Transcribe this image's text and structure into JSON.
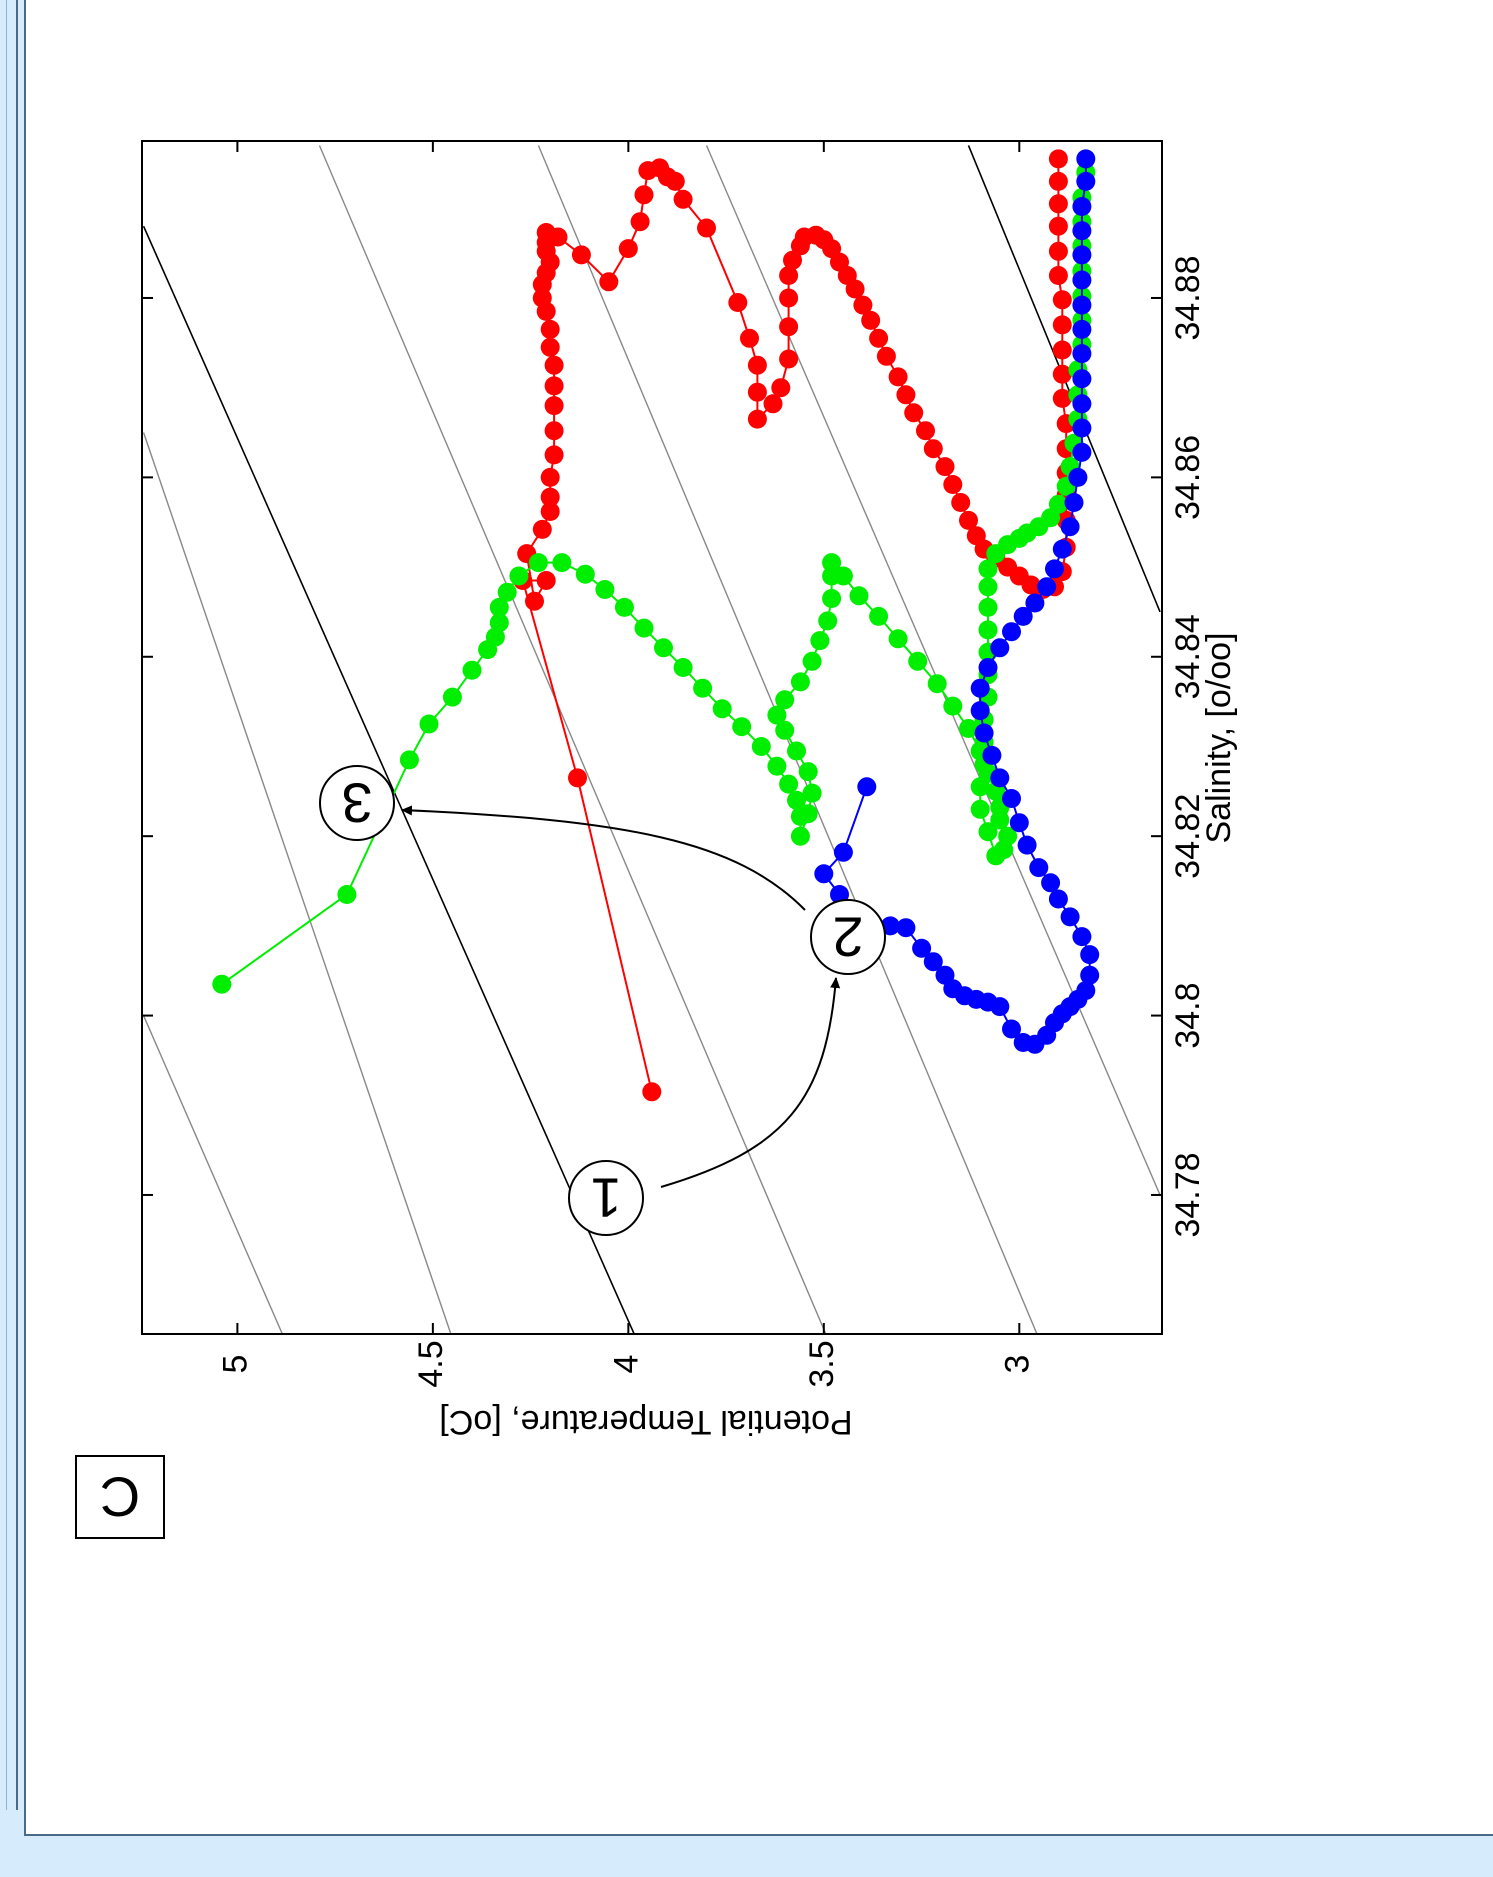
{
  "panel": {
    "letter": "C"
  },
  "colors": {
    "red": "#ff0000",
    "green": "#00ee00",
    "blue": "#0000ff",
    "isopycnal_dark": "#000000",
    "isopycnal_light": "#888888"
  },
  "annotations": [
    {
      "label": "1"
    },
    {
      "label": "2"
    },
    {
      "label": "3"
    }
  ],
  "chart_data": {
    "type": "scatter",
    "orientation": "rotated-180",
    "xlabel": "Salinity, [o/oo]",
    "ylabel": "Potential Temperature, [oC]",
    "xlim": [
      34.7645,
      34.8975
    ],
    "ylim": [
      2.635,
      5.244
    ],
    "xticks": [
      34.78,
      34.8,
      34.82,
      34.84,
      34.86,
      34.88
    ],
    "xtick_labels": [
      "34.78",
      "34.8",
      "34.82",
      "34.84",
      "34.86",
      "34.88"
    ],
    "yticks": [
      3,
      3.5,
      4,
      4.5,
      5
    ],
    "ytick_labels": [
      "3",
      "3.5",
      "4",
      "4.5",
      "5"
    ],
    "grid": false,
    "isopycnals": [
      {
        "style": "light",
        "points": [
          [
            34.764,
            4.88
          ],
          [
            34.8,
            5.24
          ]
        ]
      },
      {
        "style": "light",
        "points": [
          [
            34.764,
            4.45
          ],
          [
            34.865,
            5.24
          ]
        ]
      },
      {
        "style": "dark",
        "points": [
          [
            34.764,
            3.98
          ],
          [
            34.888,
            5.24
          ]
        ]
      },
      {
        "style": "light",
        "points": [
          [
            34.764,
            3.49
          ],
          [
            34.897,
            4.79
          ]
        ]
      },
      {
        "style": "light",
        "points": [
          [
            34.764,
            2.95
          ],
          [
            34.897,
            4.23
          ]
        ]
      },
      {
        "style": "light",
        "points": [
          [
            34.78,
            2.64
          ],
          [
            34.897,
            3.8
          ]
        ]
      },
      {
        "style": "dark",
        "points": [
          [
            34.845,
            2.64
          ],
          [
            34.897,
            3.13
          ]
        ]
      }
    ],
    "series": [
      {
        "color": "red",
        "points": [
          [
            34.7915,
            3.94
          ],
          [
            34.8265,
            4.13
          ],
          [
            34.8485,
            4.27
          ],
          [
            34.8485,
            4.21
          ],
          [
            34.8462,
            4.24
          ],
          [
            34.8515,
            4.26
          ],
          [
            34.8542,
            4.22
          ],
          [
            34.8562,
            4.2
          ],
          [
            34.8578,
            4.2
          ],
          [
            34.86,
            4.2
          ],
          [
            34.8625,
            4.19
          ],
          [
            34.8652,
            4.19
          ],
          [
            34.868,
            4.19
          ],
          [
            34.8702,
            4.19
          ],
          [
            34.8725,
            4.19
          ],
          [
            34.8745,
            4.2
          ],
          [
            34.8765,
            4.2
          ],
          [
            34.8785,
            4.21
          ],
          [
            34.88,
            4.22
          ],
          [
            34.8815,
            4.22
          ],
          [
            34.8828,
            4.21
          ],
          [
            34.884,
            4.2
          ],
          [
            34.8852,
            4.21
          ],
          [
            34.8862,
            4.21
          ],
          [
            34.8873,
            4.21
          ],
          [
            34.8868,
            4.18
          ],
          [
            34.8848,
            4.12
          ],
          [
            34.8818,
            4.05
          ],
          [
            34.8855,
            4.0
          ],
          [
            34.8885,
            3.97
          ],
          [
            34.8915,
            3.96
          ],
          [
            34.8942,
            3.95
          ],
          [
            34.8945,
            3.92
          ],
          [
            34.8935,
            3.9
          ],
          [
            34.893,
            3.88
          ],
          [
            34.891,
            3.86
          ],
          [
            34.8878,
            3.8
          ],
          [
            34.8795,
            3.72
          ],
          [
            34.8755,
            3.69
          ],
          [
            34.8725,
            3.67
          ],
          [
            34.8695,
            3.67
          ],
          [
            34.8665,
            3.67
          ],
          [
            34.8682,
            3.63
          ],
          [
            34.87,
            3.61
          ],
          [
            34.8732,
            3.59
          ],
          [
            34.8768,
            3.59
          ],
          [
            34.88,
            3.59
          ],
          [
            34.8825,
            3.59
          ],
          [
            34.8842,
            3.58
          ],
          [
            34.8858,
            3.56
          ],
          [
            34.8868,
            3.55
          ],
          [
            34.887,
            3.52
          ],
          [
            34.8865,
            3.5
          ],
          [
            34.8855,
            3.48
          ],
          [
            34.884,
            3.46
          ],
          [
            34.8825,
            3.44
          ],
          [
            34.881,
            3.42
          ],
          [
            34.8792,
            3.4
          ],
          [
            34.8775,
            3.38
          ],
          [
            34.8755,
            3.36
          ],
          [
            34.8735,
            3.34
          ],
          [
            34.8712,
            3.31
          ],
          [
            34.8692,
            3.29
          ],
          [
            34.8672,
            3.27
          ],
          [
            34.8652,
            3.24
          ],
          [
            34.8632,
            3.22
          ],
          [
            34.8612,
            3.19
          ],
          [
            34.8592,
            3.17
          ],
          [
            34.8572,
            3.15
          ],
          [
            34.8552,
            3.13
          ],
          [
            34.8535,
            3.11
          ],
          [
            34.852,
            3.09
          ],
          [
            34.851,
            3.06
          ],
          [
            34.85,
            3.03
          ],
          [
            34.849,
            3.0
          ],
          [
            34.848,
            2.97
          ],
          [
            34.8475,
            2.94
          ],
          [
            34.8478,
            2.91
          ],
          [
            34.8495,
            2.89
          ],
          [
            34.8522,
            2.88
          ],
          [
            34.8552,
            2.88
          ],
          [
            34.858,
            2.88
          ],
          [
            34.8605,
            2.88
          ],
          [
            34.8632,
            2.88
          ],
          [
            34.866,
            2.88
          ],
          [
            34.8688,
            2.89
          ],
          [
            34.8715,
            2.89
          ],
          [
            34.8742,
            2.89
          ],
          [
            34.877,
            2.89
          ],
          [
            34.8798,
            2.89
          ],
          [
            34.8825,
            2.9
          ],
          [
            34.8852,
            2.9
          ],
          [
            34.888,
            2.9
          ],
          [
            34.8905,
            2.9
          ],
          [
            34.893,
            2.9
          ],
          [
            34.8955,
            2.9
          ]
        ]
      },
      {
        "color": "green",
        "points": [
          [
            34.8035,
            5.04
          ],
          [
            34.8135,
            4.72
          ],
          [
            34.8285,
            4.56
          ],
          [
            34.8325,
            4.51
          ],
          [
            34.8355,
            4.45
          ],
          [
            34.8385,
            4.4
          ],
          [
            34.8408,
            4.36
          ],
          [
            34.8422,
            4.34
          ],
          [
            34.8438,
            4.33
          ],
          [
            34.8455,
            4.33
          ],
          [
            34.8472,
            4.31
          ],
          [
            34.849,
            4.28
          ],
          [
            34.8505,
            4.23
          ],
          [
            34.8505,
            4.17
          ],
          [
            34.8492,
            4.11
          ],
          [
            34.8475,
            4.06
          ],
          [
            34.8455,
            4.01
          ],
          [
            34.8432,
            3.96
          ],
          [
            34.841,
            3.91
          ],
          [
            34.8388,
            3.86
          ],
          [
            34.8365,
            3.81
          ],
          [
            34.8342,
            3.76
          ],
          [
            34.8322,
            3.71
          ],
          [
            34.83,
            3.66
          ],
          [
            34.8278,
            3.62
          ],
          [
            34.8258,
            3.59
          ],
          [
            34.824,
            3.57
          ],
          [
            34.8222,
            3.56
          ],
          [
            34.82,
            3.56
          ],
          [
            34.8225,
            3.54
          ],
          [
            34.8248,
            3.53
          ],
          [
            34.8272,
            3.54
          ],
          [
            34.8295,
            3.57
          ],
          [
            34.8318,
            3.6
          ],
          [
            34.8335,
            3.62
          ],
          [
            34.8352,
            3.6
          ],
          [
            34.8372,
            3.56
          ],
          [
            34.8395,
            3.53
          ],
          [
            34.8418,
            3.51
          ],
          [
            34.844,
            3.49
          ],
          [
            34.8465,
            3.48
          ],
          [
            34.849,
            3.48
          ],
          [
            34.8505,
            3.48
          ],
          [
            34.849,
            3.45
          ],
          [
            34.8468,
            3.41
          ],
          [
            34.8445,
            3.36
          ],
          [
            34.842,
            3.31
          ],
          [
            34.8395,
            3.26
          ],
          [
            34.837,
            3.21
          ],
          [
            34.8345,
            3.17
          ],
          [
            34.832,
            3.13
          ],
          [
            34.8295,
            3.1
          ],
          [
            34.827,
            3.08
          ],
          [
            34.825,
            3.06
          ],
          [
            34.8232,
            3.05
          ],
          [
            34.8218,
            3.05
          ],
          [
            34.82,
            3.03
          ],
          [
            34.8185,
            3.04
          ],
          [
            34.8178,
            3.06
          ],
          [
            34.8205,
            3.08
          ],
          [
            34.823,
            3.1
          ],
          [
            34.8255,
            3.1
          ],
          [
            34.828,
            3.09
          ],
          [
            34.8305,
            3.09
          ],
          [
            34.833,
            3.09
          ],
          [
            34.8355,
            3.08
          ],
          [
            34.838,
            3.08
          ],
          [
            34.8405,
            3.08
          ],
          [
            34.843,
            3.08
          ],
          [
            34.8455,
            3.08
          ],
          [
            34.8478,
            3.08
          ],
          [
            34.8498,
            3.08
          ],
          [
            34.8515,
            3.06
          ],
          [
            34.8525,
            3.03
          ],
          [
            34.8532,
            3.0
          ],
          [
            34.8538,
            2.98
          ],
          [
            34.8545,
            2.95
          ],
          [
            34.8555,
            2.92
          ],
          [
            34.857,
            2.9
          ],
          [
            34.859,
            2.88
          ],
          [
            34.8612,
            2.87
          ],
          [
            34.8638,
            2.86
          ],
          [
            34.8665,
            2.85
          ],
          [
            34.8692,
            2.85
          ],
          [
            34.872,
            2.85
          ],
          [
            34.8748,
            2.84
          ],
          [
            34.8775,
            2.84
          ],
          [
            34.8802,
            2.84
          ],
          [
            34.883,
            2.84
          ],
          [
            34.8858,
            2.84
          ],
          [
            34.8885,
            2.84
          ],
          [
            34.8912,
            2.84
          ],
          [
            34.894,
            2.83
          ]
        ]
      },
      {
        "color": "blue",
        "points": [
          [
            34.8255,
            3.39
          ],
          [
            34.8182,
            3.45
          ],
          [
            34.8158,
            3.5
          ],
          [
            34.8135,
            3.46
          ],
          [
            34.8112,
            3.42
          ],
          [
            34.8095,
            3.38
          ],
          [
            34.81,
            3.33
          ],
          [
            34.8098,
            3.29
          ],
          [
            34.8075,
            3.25
          ],
          [
            34.806,
            3.22
          ],
          [
            34.8045,
            3.19
          ],
          [
            34.803,
            3.17
          ],
          [
            34.8022,
            3.14
          ],
          [
            34.8018,
            3.11
          ],
          [
            34.8015,
            3.08
          ],
          [
            34.801,
            3.05
          ],
          [
            34.7985,
            3.02
          ],
          [
            34.797,
            2.99
          ],
          [
            34.7968,
            2.96
          ],
          [
            34.7978,
            2.93
          ],
          [
            34.7992,
            2.91
          ],
          [
            34.8002,
            2.89
          ],
          [
            34.801,
            2.87
          ],
          [
            34.8018,
            2.85
          ],
          [
            34.8028,
            2.83
          ],
          [
            34.8045,
            2.82
          ],
          [
            34.8068,
            2.82
          ],
          [
            34.8088,
            2.84
          ],
          [
            34.811,
            2.87
          ],
          [
            34.813,
            2.9
          ],
          [
            34.8148,
            2.92
          ],
          [
            34.8165,
            2.95
          ],
          [
            34.819,
            2.98
          ],
          [
            34.8215,
            3.0
          ],
          [
            34.8242,
            3.02
          ],
          [
            34.8265,
            3.05
          ],
          [
            34.829,
            3.07
          ],
          [
            34.8315,
            3.09
          ],
          [
            34.834,
            3.1
          ],
          [
            34.8365,
            3.1
          ],
          [
            34.8388,
            3.08
          ],
          [
            34.841,
            3.05
          ],
          [
            34.8428,
            3.02
          ],
          [
            34.8445,
            2.99
          ],
          [
            34.846,
            2.96
          ],
          [
            34.8478,
            2.93
          ],
          [
            34.8498,
            2.91
          ],
          [
            34.852,
            2.89
          ],
          [
            34.8545,
            2.87
          ],
          [
            34.8572,
            2.86
          ],
          [
            34.86,
            2.85
          ],
          [
            34.8628,
            2.84
          ],
          [
            34.8655,
            2.84
          ],
          [
            34.8682,
            2.84
          ],
          [
            34.871,
            2.84
          ],
          [
            34.8738,
            2.84
          ],
          [
            34.8765,
            2.84
          ],
          [
            34.8792,
            2.84
          ],
          [
            34.882,
            2.84
          ],
          [
            34.8848,
            2.84
          ],
          [
            34.8875,
            2.84
          ],
          [
            34.8902,
            2.84
          ],
          [
            34.893,
            2.83
          ],
          [
            34.8955,
            2.83
          ]
        ]
      }
    ]
  }
}
